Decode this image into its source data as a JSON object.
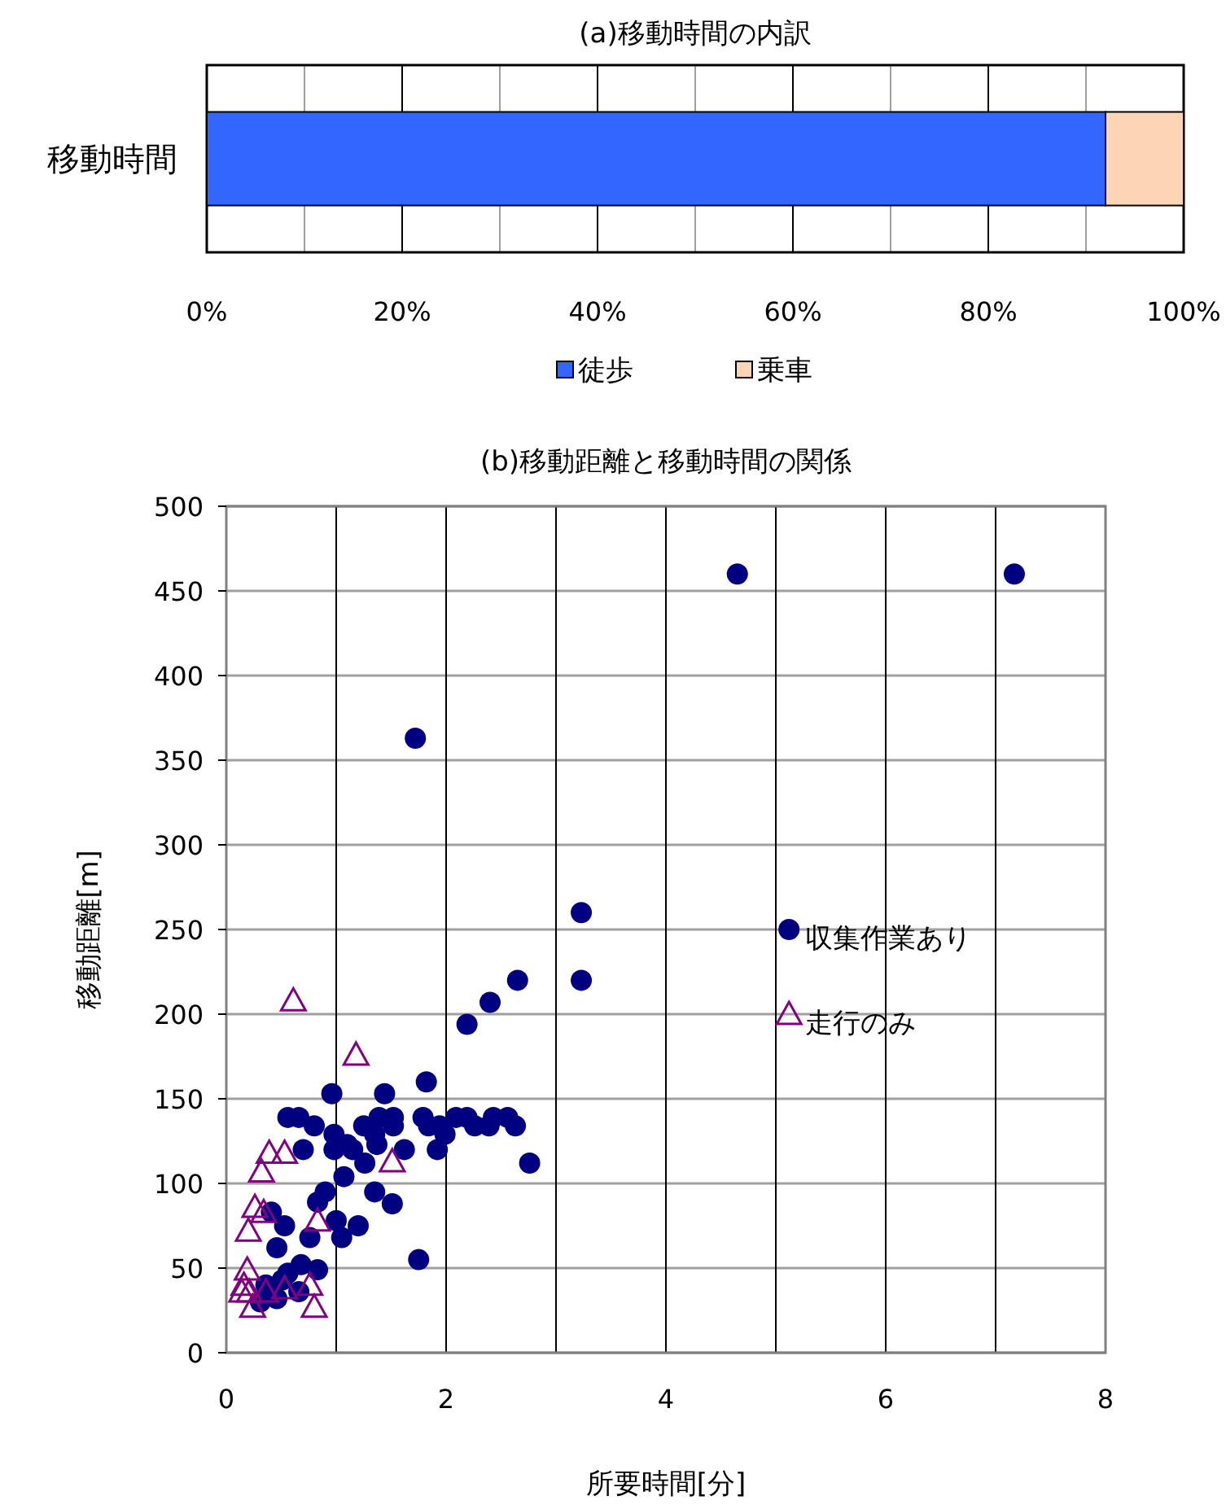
{
  "chart_data": [
    {
      "type": "bar",
      "orientation": "horizontal",
      "stacked": true,
      "title": "(a)移動時間の内訳",
      "categories": [
        "移動時間"
      ],
      "series": [
        {
          "name": "徒歩",
          "color": "#3366ff",
          "values": [
            92
          ]
        },
        {
          "name": "乗車",
          "color": "#fbd5b5",
          "values": [
            8
          ]
        }
      ],
      "xlim": [
        0,
        100
      ],
      "xticks": [
        {
          "value": 0,
          "label": "0%"
        },
        {
          "value": 10,
          "label": null
        },
        {
          "value": 20,
          "label": "20%"
        },
        {
          "value": 30,
          "label": null
        },
        {
          "value": 40,
          "label": "40%"
        },
        {
          "value": 50,
          "label": null
        },
        {
          "value": 60,
          "label": "60%"
        },
        {
          "value": 70,
          "label": null
        },
        {
          "value": 80,
          "label": "80%"
        },
        {
          "value": 90,
          "label": null
        },
        {
          "value": 100,
          "label": "100%"
        }
      ],
      "grid": "x",
      "legend": "bottom"
    },
    {
      "type": "scatter",
      "title": "(b)移動距離と移動時間の関係",
      "xlabel": "所要時間[分]",
      "ylabel": "移動距離[m]",
      "series": [
        {
          "name": "収集作業あり",
          "color": "#000080",
          "marker": "circle",
          "x": [
            2.65,
            2.4,
            2.19,
            0.96,
            1.44,
            1.82,
            0.56,
            0.66,
            1.39,
            1.52,
            1.79,
            2.09,
            2.19,
            2.43,
            2.56,
            0.8,
            1.25,
            1.52,
            1.84,
            1.94,
            2.26,
            2.39,
            2.63,
            0.98,
            1.35,
            1.99,
            1.1,
            1.37,
            0.7,
            0.98,
            1.15,
            1.62,
            1.92,
            1.26,
            1.07,
            2.76,
            1.35,
            1.51,
            0.9,
            0.83,
            0.41,
            0.53,
            1.2,
            0.76,
            1.05,
            1.0,
            0.46,
            1.75,
            0.68,
            0.83,
            0.56,
            0.51,
            0.36,
            0.46,
            0.31,
            0.66,
            1.72,
            4.65,
            7.17,
            3.23,
            3.23
          ],
          "values": [
            220,
            207,
            194,
            153,
            153,
            160,
            139,
            139,
            139,
            139,
            139,
            139,
            139,
            139,
            139,
            134,
            134,
            134,
            134,
            134,
            134,
            134,
            134,
            129,
            129,
            129,
            123,
            123,
            120,
            120,
            120,
            120,
            120,
            112,
            104,
            112,
            95,
            88,
            95,
            89,
            83,
            75,
            75,
            68,
            68,
            78,
            62,
            55,
            52,
            49,
            47,
            43,
            40,
            32,
            30,
            36,
            363,
            460,
            460,
            260,
            220
          ]
        },
        {
          "name": "走行のみ",
          "color": "#800080",
          "marker": "triangle",
          "x": [
            0.61,
            1.18,
            0.39,
            0.53,
            0.32,
            1.51,
            0.26,
            0.34,
            0.2,
            0.83,
            0.19,
            0.16,
            0.21,
            0.36,
            0.53,
            0.76,
            0.24,
            0.8,
            0.14
          ],
          "values": [
            208,
            176,
            118,
            118,
            107,
            113,
            86,
            83,
            72,
            78,
            49,
            40,
            36,
            36,
            38,
            40,
            27,
            27,
            36
          ]
        }
      ],
      "xlim": [
        0,
        8
      ],
      "xticks": [
        0,
        {
          "value": 1,
          "label": null
        },
        2,
        {
          "value": 3,
          "label": null
        },
        4,
        {
          "value": 5,
          "label": null
        },
        6,
        {
          "value": 7,
          "label": null
        },
        8
      ],
      "ylim": [
        0,
        500
      ],
      "yticks": [
        0,
        50,
        100,
        150,
        200,
        250,
        300,
        350,
        400,
        450,
        500
      ],
      "grid": true,
      "legend": "right"
    }
  ]
}
